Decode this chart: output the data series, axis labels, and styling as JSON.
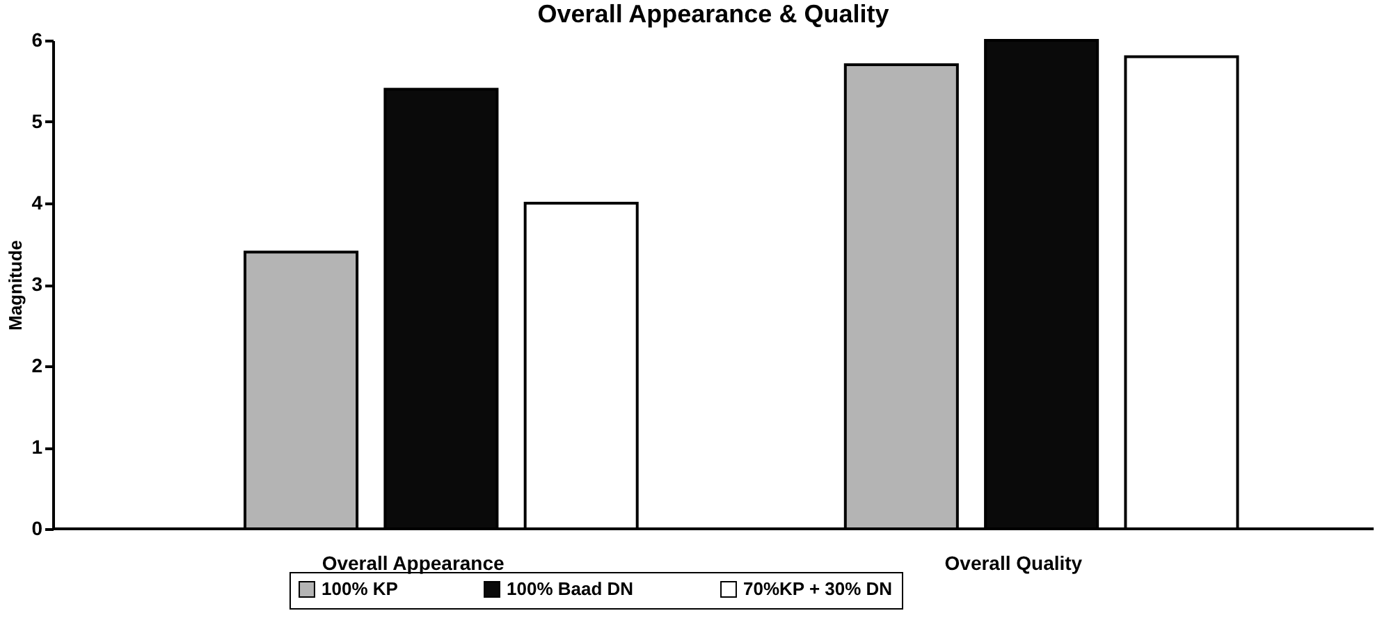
{
  "chart_data": {
    "type": "bar",
    "title": "Overall Appearance & Quality",
    "ylabel": "Magnitude",
    "categories": [
      "Overall Appearance",
      "Overall Quality"
    ],
    "series": [
      {
        "name": "100% KP",
        "color": "#b4b4b4",
        "values": [
          3.4,
          5.7
        ]
      },
      {
        "name": "100% Baad DN",
        "color": "#0a0a0a",
        "values": [
          5.4,
          6.0
        ]
      },
      {
        "name": "70%KP + 30% DN",
        "color": "#ffffff",
        "values": [
          4.0,
          5.8
        ]
      }
    ],
    "ylim": [
      0,
      6
    ],
    "yticks": [
      0,
      1,
      2,
      3,
      4,
      5,
      6
    ],
    "grid": false,
    "legend": "bottom"
  }
}
